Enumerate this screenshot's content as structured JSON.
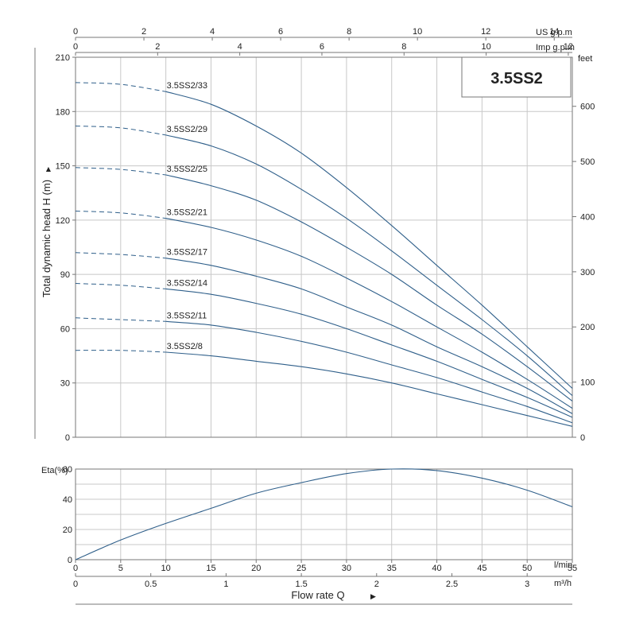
{
  "chart_data": [
    {
      "type": "line",
      "title": "",
      "model_badge": "3.5SS2",
      "ylabel": "Total dynamic head H (m)",
      "ylabel_right": "feet",
      "ylim": [
        0,
        210
      ],
      "y_ticks": [
        0,
        30,
        60,
        90,
        120,
        150,
        180,
        210
      ],
      "y_ticks_right": [
        0,
        100,
        200,
        300,
        400,
        500,
        600
      ],
      "x_unit_top1": "US g.p.m",
      "x_ticks_top1": [
        0,
        2,
        4,
        6,
        8,
        10,
        12,
        14
      ],
      "x_unit_top2": "Imp g.p.m",
      "x_ticks_top2": [
        0,
        2,
        4,
        6,
        8,
        10,
        12
      ],
      "xlim": [
        0,
        55
      ],
      "x": [
        0,
        5,
        10,
        15,
        20,
        25,
        30,
        35,
        40,
        45,
        50,
        55
      ],
      "dashed_until_x": 10,
      "grid": true,
      "series": [
        {
          "name": "3.5SS2/33",
          "values": [
            196,
            195,
            191,
            184,
            172,
            157,
            138,
            117,
            95,
            73,
            50,
            27
          ]
        },
        {
          "name": "3.5SS2/29",
          "values": [
            172,
            171,
            167,
            161,
            151,
            137,
            121,
            103,
            84,
            65,
            45,
            23
          ]
        },
        {
          "name": "3.5SS2/25",
          "values": [
            149,
            148,
            145,
            139,
            131,
            119,
            105,
            90,
            73,
            57,
            39,
            20
          ]
        },
        {
          "name": "3.5SS2/21",
          "values": [
            125,
            124,
            121,
            116,
            109,
            100,
            88,
            75,
            61,
            47,
            32,
            16
          ]
        },
        {
          "name": "3.5SS2/17",
          "values": [
            102,
            101,
            99,
            95,
            89,
            82,
            72,
            62,
            50,
            39,
            27,
            13
          ]
        },
        {
          "name": "3.5SS2/14",
          "values": [
            85,
            84,
            82,
            79,
            74,
            68,
            60,
            51,
            42,
            32,
            22,
            11
          ]
        },
        {
          "name": "3.5SS2/11",
          "values": [
            66,
            65,
            64,
            62,
            58,
            53,
            47,
            40,
            33,
            25,
            17,
            8
          ]
        },
        {
          "name": "3.5SS2/8",
          "values": [
            48,
            48,
            47,
            45,
            42,
            39,
            35,
            30,
            24,
            18,
            12,
            6
          ]
        }
      ]
    },
    {
      "type": "line",
      "title": "",
      "ylabel": "Eta(%)",
      "ylim": [
        0,
        60
      ],
      "y_ticks": [
        0,
        20,
        40,
        60
      ],
      "x_unit": "l/min",
      "xlim": [
        0,
        55
      ],
      "x_ticks": [
        0,
        5,
        10,
        15,
        20,
        25,
        30,
        35,
        40,
        45,
        50,
        55
      ],
      "x_unit_m3h": "m³/h",
      "x_ticks_m3h": [
        0,
        0.5,
        1,
        1.5,
        2,
        2.5,
        3
      ],
      "xlabel": "Flow rate Q",
      "grid": true,
      "x": [
        0,
        5,
        10,
        15,
        20,
        25,
        30,
        35,
        40,
        45,
        50,
        55
      ],
      "values": [
        0,
        13,
        24,
        34,
        44,
        51,
        57,
        60,
        59,
        54,
        46,
        35
      ]
    }
  ]
}
